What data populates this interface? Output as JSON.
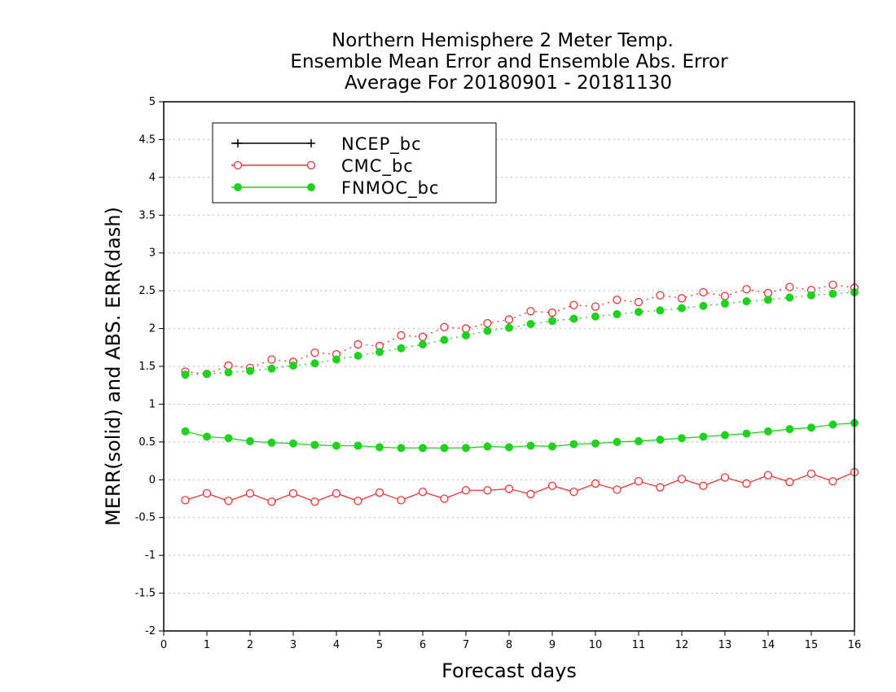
{
  "chart_data": {
    "type": "line",
    "title": [
      "Northern Hemisphere 2 Meter Temp.",
      "Ensemble Mean Error and Ensemble Abs. Error",
      "Average For 20180901 - 20181130"
    ],
    "xlabel": "Forecast days",
    "ylabel": "MERR(solid) and ABS. ERR(dash)",
    "xlim": [
      0,
      16
    ],
    "ylim": [
      -2,
      5
    ],
    "xticks": [
      "0",
      "1",
      "2",
      "3",
      "4",
      "5",
      "6",
      "7",
      "8",
      "9",
      "10",
      "11",
      "12",
      "13",
      "14",
      "15",
      "16"
    ],
    "yticks": [
      "-2",
      "-1.5",
      "-1",
      "-0.5",
      "0",
      "0.5",
      "1",
      "1.5",
      "2",
      "2.5",
      "3",
      "3.5",
      "4",
      "4.5",
      "5"
    ],
    "grid": "horizontal dotted",
    "legend_position": "top-left",
    "x": [
      0.5,
      1,
      1.5,
      2,
      2.5,
      3,
      3.5,
      4,
      4.5,
      5,
      5.5,
      6,
      6.5,
      7,
      7.5,
      8,
      8.5,
      9,
      9.5,
      10,
      10.5,
      11,
      11.5,
      12,
      12.5,
      13,
      13.5,
      14,
      14.5,
      15,
      15.5,
      16
    ],
    "series": [
      {
        "name": "NCEP_bc",
        "color": "#000000",
        "marker": "plus",
        "merr": [],
        "abs_err": []
      },
      {
        "name": "CMC_bc",
        "color": "#f03232",
        "marker": "open-circle",
        "merr": [
          -0.27,
          -0.18,
          -0.28,
          -0.18,
          -0.29,
          -0.18,
          -0.29,
          -0.18,
          -0.28,
          -0.17,
          -0.27,
          -0.16,
          -0.25,
          -0.14,
          -0.14,
          -0.12,
          -0.19,
          -0.08,
          -0.16,
          -0.05,
          -0.13,
          -0.02,
          -0.1,
          0.01,
          -0.08,
          0.03,
          -0.05,
          0.06,
          -0.03,
          0.08,
          -0.02,
          0.1
        ],
        "abs_err": [
          1.43,
          1.4,
          1.51,
          1.48,
          1.59,
          1.56,
          1.68,
          1.66,
          1.79,
          1.77,
          1.91,
          1.89,
          2.02,
          2.0,
          2.07,
          2.12,
          2.23,
          2.21,
          2.31,
          2.29,
          2.38,
          2.35,
          2.44,
          2.4,
          2.48,
          2.43,
          2.52,
          2.47,
          2.55,
          2.51,
          2.58,
          2.54
        ]
      },
      {
        "name": "FNMOC_bc",
        "color": "#1ed21e",
        "marker": "filled-circle",
        "merr": [
          0.64,
          0.57,
          0.55,
          0.51,
          0.49,
          0.48,
          0.46,
          0.45,
          0.45,
          0.43,
          0.42,
          0.42,
          0.42,
          0.42,
          0.44,
          0.43,
          0.45,
          0.44,
          0.47,
          0.48,
          0.5,
          0.51,
          0.53,
          0.55,
          0.57,
          0.59,
          0.61,
          0.64,
          0.67,
          0.69,
          0.73,
          0.75
        ],
        "abs_err": [
          1.39,
          1.4,
          1.42,
          1.44,
          1.47,
          1.51,
          1.54,
          1.59,
          1.64,
          1.69,
          1.74,
          1.79,
          1.85,
          1.91,
          1.97,
          2.01,
          2.06,
          2.1,
          2.13,
          2.16,
          2.19,
          2.22,
          2.24,
          2.27,
          2.3,
          2.33,
          2.36,
          2.38,
          2.41,
          2.44,
          2.46,
          2.48
        ]
      }
    ]
  }
}
